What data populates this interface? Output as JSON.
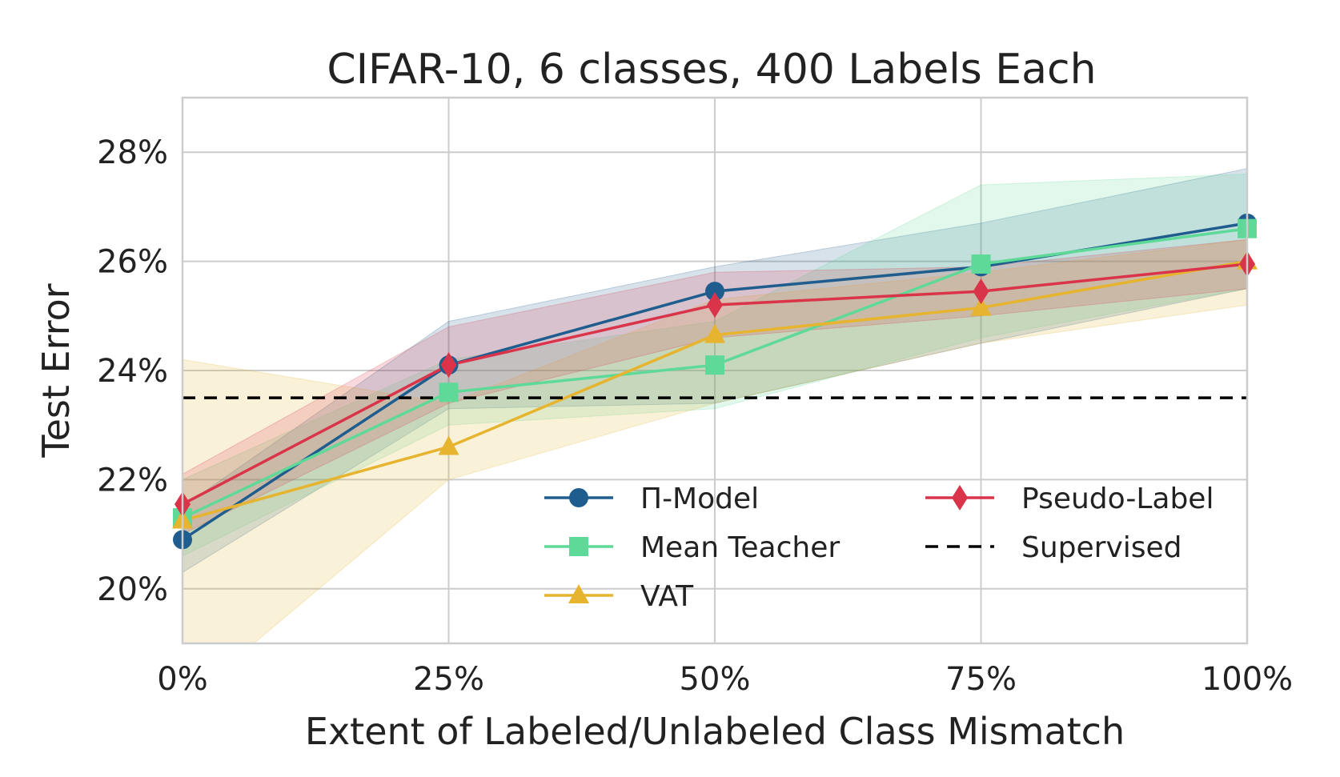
{
  "chart_data": {
    "type": "line",
    "title": "CIFAR-10, 6 classes, 400 Labels Each",
    "xlabel": "Extent of Labeled/Unlabeled Class Mismatch",
    "ylabel": "Test Error",
    "x": [
      0,
      25,
      50,
      75,
      100
    ],
    "x_tick_labels": [
      "0%",
      "25%",
      "50%",
      "75%",
      "100%"
    ],
    "y_ticks": [
      20,
      22,
      24,
      26,
      28
    ],
    "y_tick_labels": [
      "20%",
      "22%",
      "24%",
      "26%",
      "28%"
    ],
    "xlim": [
      0,
      100
    ],
    "ylim": [
      19,
      29
    ],
    "grid": true,
    "legend_position": "lower-right",
    "series": [
      {
        "name": "Π-Model",
        "color": "#1f5d8f",
        "marker": "circle",
        "values": [
          20.9,
          24.1,
          25.45,
          25.9,
          26.7
        ],
        "band_lower": [
          20.3,
          23.3,
          23.4,
          24.5,
          25.5
        ],
        "band_upper": [
          21.5,
          24.9,
          25.9,
          26.7,
          27.7
        ]
      },
      {
        "name": "Mean Teacher",
        "color": "#5ed997",
        "marker": "square",
        "values": [
          21.3,
          23.6,
          24.1,
          25.95,
          26.6
        ],
        "band_lower": [
          20.6,
          23.0,
          23.3,
          24.6,
          25.5
        ],
        "band_upper": [
          22.0,
          24.2,
          24.9,
          27.4,
          27.6
        ]
      },
      {
        "name": "VAT",
        "color": "#e6b42e",
        "marker": "triangle",
        "values": [
          21.25,
          22.6,
          24.65,
          25.15,
          26.0
        ],
        "band_lower": [
          17.9,
          22.0,
          23.4,
          24.5,
          25.2
        ],
        "band_upper": [
          24.2,
          23.4,
          25.3,
          25.8,
          26.4
        ]
      },
      {
        "name": "Pseudo-Label",
        "color": "#d9344a",
        "marker": "diamond",
        "values": [
          21.55,
          24.1,
          25.2,
          25.45,
          25.95
        ],
        "band_lower": [
          21.0,
          23.4,
          24.6,
          25.0,
          25.5
        ],
        "band_upper": [
          22.1,
          24.8,
          25.8,
          25.9,
          26.4
        ]
      },
      {
        "name": "Supervised",
        "color": "#000000",
        "marker": "none",
        "style": "dashed",
        "values": [
          23.5,
          23.5,
          23.5,
          23.5,
          23.5
        ]
      }
    ]
  }
}
